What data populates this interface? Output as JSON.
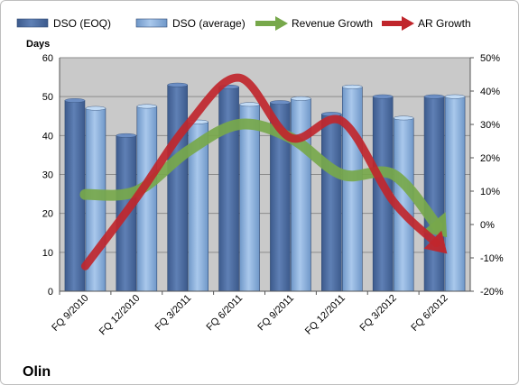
{
  "company": "Olin",
  "chart_data": {
    "type": "bar",
    "categories": [
      "FQ 9/2010",
      "FQ 12/2010",
      "FQ 3/2011",
      "FQ 6/2011",
      "FQ 9/2011",
      "FQ 12/2011",
      "FQ 3/2012",
      "FQ 6/2012"
    ],
    "series": [
      {
        "name": "DSO (EOQ)",
        "type": "bar",
        "axis": "left",
        "color": "#4f6fa3",
        "values": [
          49,
          40,
          53,
          52.5,
          48.5,
          45.5,
          50,
          50
        ]
      },
      {
        "name": "DSO (average)",
        "type": "bar",
        "axis": "left",
        "color": "#8db3e2",
        "values": [
          47,
          47.5,
          43.5,
          48,
          49.5,
          52.5,
          44.5,
          50
        ]
      },
      {
        "name": "Revenue Growth",
        "type": "line-arrow",
        "axis": "right",
        "color": "#77a84b",
        "values": [
          9,
          10,
          22,
          30,
          26,
          15,
          15,
          -3
        ]
      },
      {
        "name": "AR Growth",
        "type": "line-arrow",
        "axis": "right",
        "color": "#c0262c",
        "values": [
          -12.5,
          8,
          30,
          44,
          26,
          31,
          7,
          -8
        ]
      }
    ],
    "ylabel": "Days",
    "ylim": [
      0,
      60
    ],
    "yticks": [
      "0",
      "10",
      "20",
      "30",
      "40",
      "50",
      "60"
    ],
    "y2lim": [
      -20,
      50
    ],
    "y2ticks": [
      "-20%",
      "-10%",
      "0%",
      "10%",
      "20%",
      "30%",
      "40%",
      "50%"
    ],
    "grid": true,
    "legend": "top"
  }
}
